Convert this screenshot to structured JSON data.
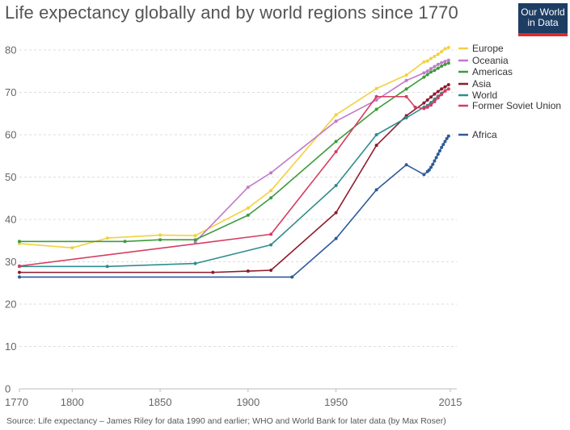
{
  "header": {
    "title": "Life expectancy globally and by world regions since 1770",
    "logo_line1": "Our World",
    "logo_line2": "in Data"
  },
  "footer": {
    "source": "Source: Life expectancy – James Riley for data 1990 and earlier; WHO and World Bank for later data (by Max Roser)"
  },
  "chart_data": {
    "type": "line",
    "title": "Life expectancy globally and by world regions since 1770",
    "xlabel": "",
    "ylabel": "",
    "xlim": [
      1770,
      2015
    ],
    "ylim": [
      0,
      80
    ],
    "x_ticks": [
      1770,
      1800,
      1850,
      1900,
      1950,
      2015
    ],
    "y_ticks": [
      0,
      10,
      20,
      30,
      40,
      50,
      60,
      70,
      80
    ],
    "grid": "horizontal dashed",
    "legend": "right",
    "series": [
      {
        "name": "Europe",
        "color": "#f2d13f",
        "points": [
          [
            1770,
            34.3
          ],
          [
            1800,
            33.3
          ],
          [
            1820,
            35.6
          ],
          [
            1850,
            36.3
          ],
          [
            1870,
            36.2
          ],
          [
            1900,
            42.7
          ],
          [
            1913,
            46.8
          ],
          [
            1950,
            64.7
          ],
          [
            1973,
            70.9
          ],
          [
            1990,
            74.1
          ],
          [
            2000,
            77.2
          ],
          [
            2002,
            77.4
          ],
          [
            2004,
            78.0
          ],
          [
            2006,
            78.5
          ],
          [
            2008,
            79.0
          ],
          [
            2010,
            79.6
          ],
          [
            2012,
            80.3
          ],
          [
            2014,
            80.6
          ]
        ]
      },
      {
        "name": "Oceania",
        "color": "#c179c6",
        "points": [
          [
            1870,
            34.7
          ],
          [
            1900,
            47.6
          ],
          [
            1913,
            51.0
          ],
          [
            1950,
            63.2
          ],
          [
            1973,
            68.2
          ],
          [
            1990,
            72.8
          ],
          [
            2000,
            74.6
          ],
          [
            2002,
            75.0
          ],
          [
            2004,
            75.6
          ],
          [
            2006,
            76.1
          ],
          [
            2008,
            76.6
          ],
          [
            2010,
            77.0
          ],
          [
            2012,
            77.3
          ],
          [
            2014,
            77.6
          ]
        ]
      },
      {
        "name": "Americas",
        "color": "#3b9c3b",
        "points": [
          [
            1770,
            34.8
          ],
          [
            1830,
            34.8
          ],
          [
            1850,
            35.2
          ],
          [
            1870,
            35.2
          ],
          [
            1900,
            41.0
          ],
          [
            1913,
            45.1
          ],
          [
            1950,
            58.4
          ],
          [
            1973,
            66.0
          ],
          [
            1990,
            70.8
          ],
          [
            2000,
            73.6
          ],
          [
            2002,
            74.2
          ],
          [
            2004,
            74.8
          ],
          [
            2006,
            75.2
          ],
          [
            2008,
            75.7
          ],
          [
            2010,
            76.2
          ],
          [
            2012,
            76.6
          ],
          [
            2014,
            76.9
          ]
        ]
      },
      {
        "name": "Asia",
        "color": "#8e1b2c",
        "points": [
          [
            1770,
            27.5
          ],
          [
            1880,
            27.5
          ],
          [
            1900,
            27.8
          ],
          [
            1913,
            28.0
          ],
          [
            1950,
            41.6
          ],
          [
            1973,
            57.5
          ],
          [
            1990,
            64.5
          ],
          [
            2000,
            67.5
          ],
          [
            2002,
            68.2
          ],
          [
            2004,
            68.9
          ],
          [
            2006,
            69.6
          ],
          [
            2008,
            70.2
          ],
          [
            2010,
            70.8
          ],
          [
            2012,
            71.3
          ],
          [
            2014,
            71.8
          ]
        ]
      },
      {
        "name": "World",
        "color": "#2f8d8f",
        "points": [
          [
            1770,
            28.9
          ],
          [
            1820,
            28.9
          ],
          [
            1870,
            29.6
          ],
          [
            1913,
            34.0
          ],
          [
            1950,
            48.0
          ],
          [
            1973,
            60.0
          ],
          [
            1990,
            64.0
          ],
          [
            2000,
            66.5
          ],
          [
            2002,
            66.9
          ],
          [
            2004,
            67.6
          ],
          [
            2006,
            68.4
          ],
          [
            2008,
            69.1
          ],
          [
            2010,
            69.8
          ],
          [
            2012,
            70.4
          ],
          [
            2014,
            70.8
          ]
        ]
      },
      {
        "name": "Former Soviet Union",
        "color": "#d63c61",
        "points": [
          [
            1770,
            29.0
          ],
          [
            1913,
            36.5
          ],
          [
            1950,
            56.0
          ],
          [
            1973,
            69.0
          ],
          [
            1990,
            69.0
          ],
          [
            1995,
            66.5
          ],
          [
            2000,
            66.2
          ],
          [
            2002,
            66.5
          ],
          [
            2004,
            67.0
          ],
          [
            2006,
            67.8
          ],
          [
            2008,
            68.7
          ],
          [
            2010,
            69.5
          ],
          [
            2012,
            70.3
          ],
          [
            2014,
            70.8
          ]
        ]
      },
      {
        "name": "Africa",
        "color": "#2e5a9a",
        "points": [
          [
            1770,
            26.4
          ],
          [
            1925,
            26.4
          ],
          [
            1950,
            35.5
          ],
          [
            1973,
            47.0
          ],
          [
            1990,
            52.9
          ],
          [
            2000,
            50.6
          ],
          [
            2002,
            51.3
          ],
          [
            2003,
            51.7
          ],
          [
            2004,
            52.3
          ],
          [
            2005,
            53.0
          ],
          [
            2006,
            53.8
          ],
          [
            2007,
            54.6
          ],
          [
            2008,
            55.4
          ],
          [
            2009,
            56.2
          ],
          [
            2010,
            57.0
          ],
          [
            2011,
            57.7
          ],
          [
            2012,
            58.4
          ],
          [
            2013,
            59.1
          ],
          [
            2014,
            59.7
          ]
        ]
      }
    ]
  }
}
